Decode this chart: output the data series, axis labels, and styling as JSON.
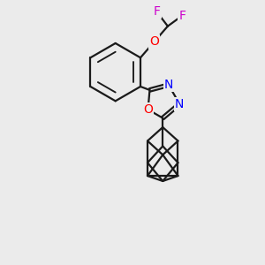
{
  "bg_color": "#ebebeb",
  "line_color": "#1a1a1a",
  "bond_width": 1.6,
  "atom_colors": {
    "F": "#cc00cc",
    "O": "#ff0000",
    "N": "#0000ff",
    "C": "#1a1a1a"
  },
  "font_size_atom": 10,
  "fig_size": [
    3.0,
    3.0
  ],
  "dpi": 100
}
